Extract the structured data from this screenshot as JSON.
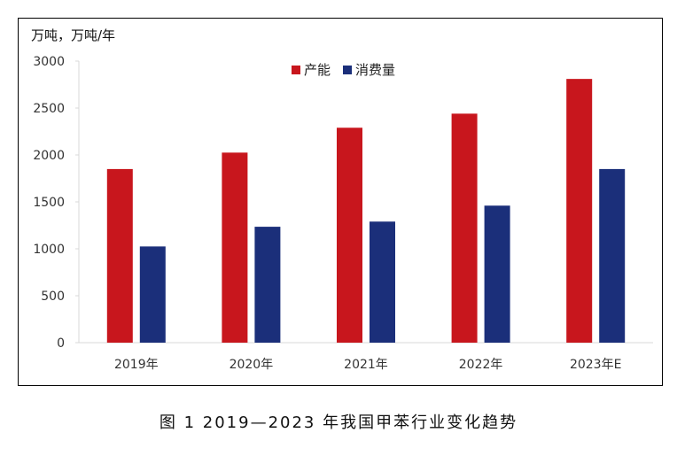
{
  "caption": "图 1  2019—2023 年我国甲苯行业变化趋势",
  "chart_data": {
    "type": "bar",
    "unit_label": "万吨，万吨/年",
    "categories": [
      "2019年",
      "2020年",
      "2021年",
      "2022年",
      "2023年E"
    ],
    "series": [
      {
        "name": "产能",
        "color": "#c8161d",
        "values": [
          1850,
          2025,
          2290,
          2440,
          2810
        ]
      },
      {
        "name": "消费量",
        "color": "#1b2f7a",
        "values": [
          1025,
          1235,
          1290,
          1460,
          1850
        ]
      }
    ],
    "ylim": [
      0,
      3000
    ],
    "yticks": [
      0,
      500,
      1000,
      1500,
      2000,
      2500,
      3000
    ],
    "grid": false,
    "legend_position": "top-center"
  }
}
